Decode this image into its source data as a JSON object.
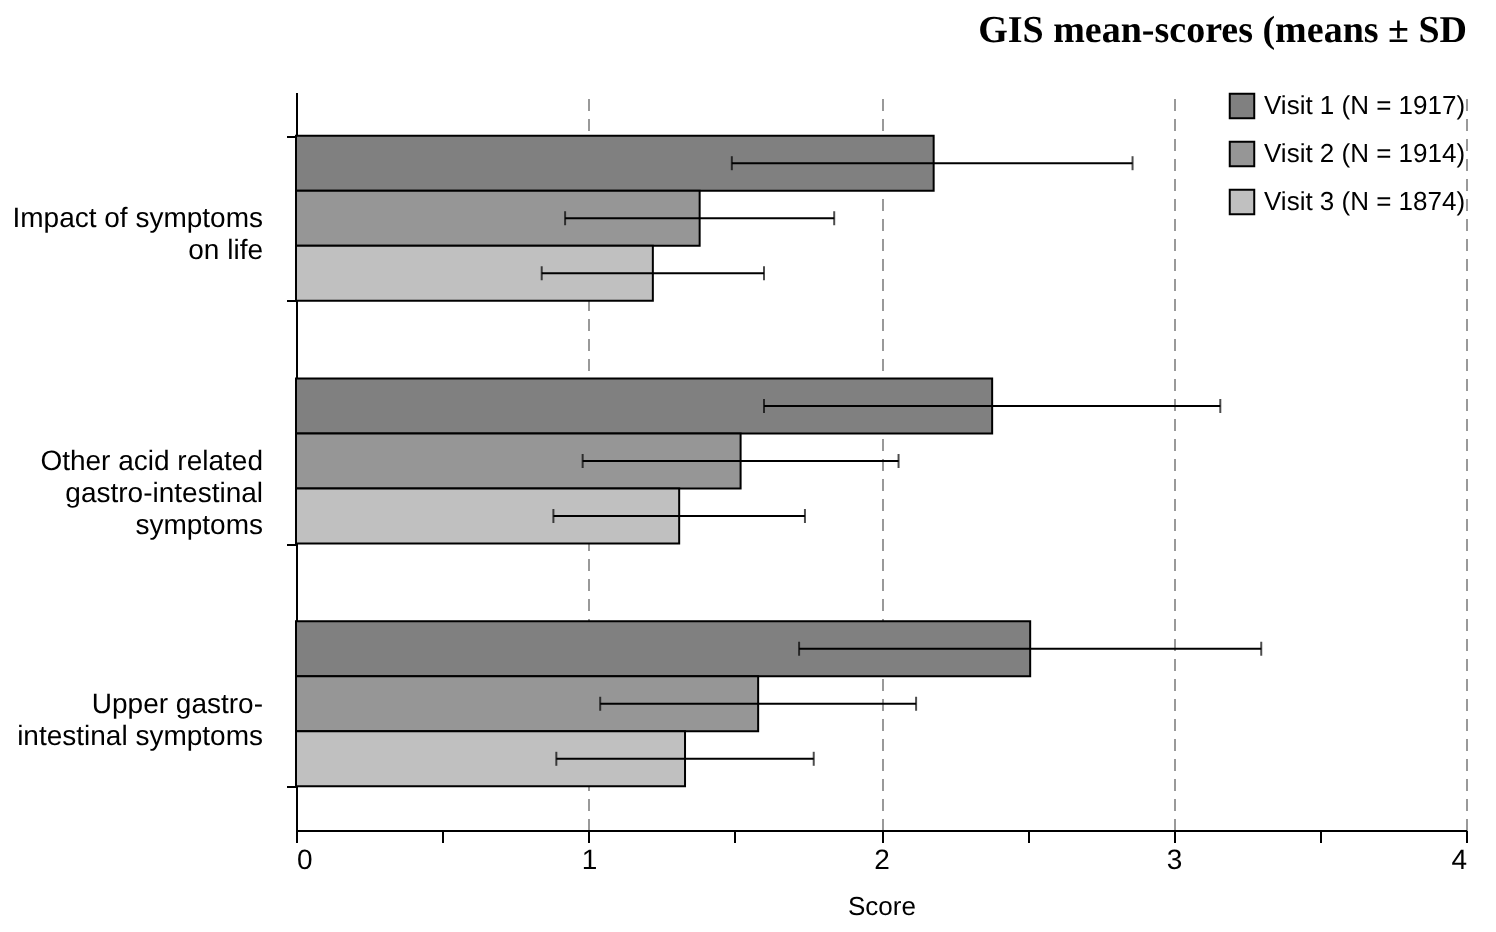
{
  "chart_data": {
    "type": "bar",
    "orientation": "horizontal",
    "title": "GIS mean-scores (means ± SD",
    "xlabel": "Score",
    "categories": [
      "Impact of symptoms on life",
      "Other acid related gastro-intestinal symptoms",
      "Upper gastro-intestinal symptoms"
    ],
    "series": [
      {
        "name": "Visit 1 (N = 1917)",
        "color": "#808080",
        "values": [
          2.18,
          2.38,
          2.51
        ],
        "errors": [
          [
            1.49,
            2.86
          ],
          [
            1.6,
            3.16
          ],
          [
            1.72,
            3.3
          ]
        ]
      },
      {
        "name": "Visit 2 (N = 1914)",
        "color": "#969696",
        "values": [
          1.38,
          1.52,
          1.58
        ],
        "errors": [
          [
            0.92,
            1.84
          ],
          [
            0.98,
            2.06
          ],
          [
            1.04,
            2.12
          ]
        ]
      },
      {
        "name": "Visit 3 (N = 1874)",
        "color": "#c0c0c0",
        "values": [
          1.22,
          1.31,
          1.33
        ],
        "errors": [
          [
            0.84,
            1.6
          ],
          [
            0.88,
            1.74
          ],
          [
            0.89,
            1.77
          ]
        ]
      }
    ],
    "xlim": [
      0,
      4
    ],
    "xticks": [
      0,
      {
        "value": 0.5,
        "label": null
      },
      1,
      {
        "value": 1.5,
        "label": null
      },
      2,
      {
        "value": 2.5,
        "label": null
      },
      3,
      {
        "value": 3.5,
        "label": null
      },
      4
    ],
    "grid": "x",
    "legend": "top right"
  }
}
